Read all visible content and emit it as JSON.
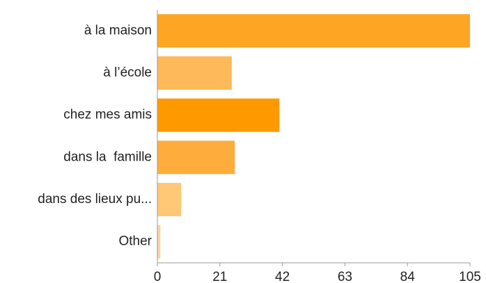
{
  "chart_data": {
    "type": "bar",
    "orientation": "horizontal",
    "categories": [
      "à la maison",
      "à l’école",
      "chez mes amis",
      "dans la  famille",
      "dans des lieux pu...",
      "Other"
    ],
    "values": [
      105,
      25,
      41,
      26,
      8,
      1
    ],
    "colors": [
      "#fea623",
      "#feb95a",
      "#fe9a00",
      "#feac3c",
      "#ffc876",
      "#ffd39a"
    ],
    "xlim": [
      0,
      105
    ],
    "xticks": [
      0,
      21,
      42,
      63,
      84,
      105
    ],
    "grid": false
  }
}
